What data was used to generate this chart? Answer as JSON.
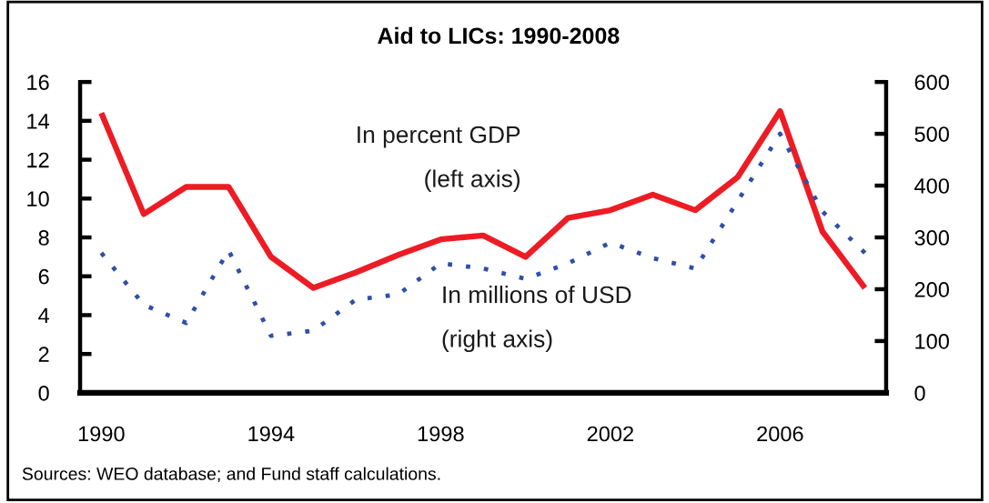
{
  "chart_data": {
    "type": "line",
    "title": "Aid to LICs: 1990-2008",
    "categories": [
      "1990",
      null,
      null,
      null,
      "1994",
      null,
      null,
      null,
      "1998",
      null,
      null,
      null,
      "2002",
      null,
      null,
      null,
      "2006",
      null,
      null
    ],
    "series": [
      {
        "name": "In percent GDP\n(left axis)",
        "color": "#ed1c24",
        "line_style": "solid",
        "values": [
          14.4,
          9.2,
          10.6,
          10.6,
          7.0,
          5.4,
          6.2,
          7.1,
          7.9,
          8.1,
          7.0,
          9.0,
          9.4,
          10.2,
          9.4,
          11.1,
          14.5,
          8.3,
          5.4
        ]
      },
      {
        "name": "In millions of USD\n(right axis)",
        "color": "#2f4fa8",
        "line_style": "dotted",
        "axis": "y2",
        "values": [
          270,
          170,
          135,
          275,
          110,
          120,
          180,
          190,
          250,
          240,
          220,
          250,
          290,
          260,
          240,
          370,
          500,
          350,
          270
        ]
      }
    ],
    "ylim": [
      0,
      16
    ],
    "yticks": [
      0,
      2,
      4,
      6,
      8,
      10,
      12,
      14,
      16
    ],
    "y2lim": [
      0,
      600
    ],
    "y2ticks": [
      0,
      100,
      200,
      300,
      400,
      500,
      600
    ],
    "annotations": [
      "Sources: WEO database; and Fund staff calculations."
    ]
  }
}
